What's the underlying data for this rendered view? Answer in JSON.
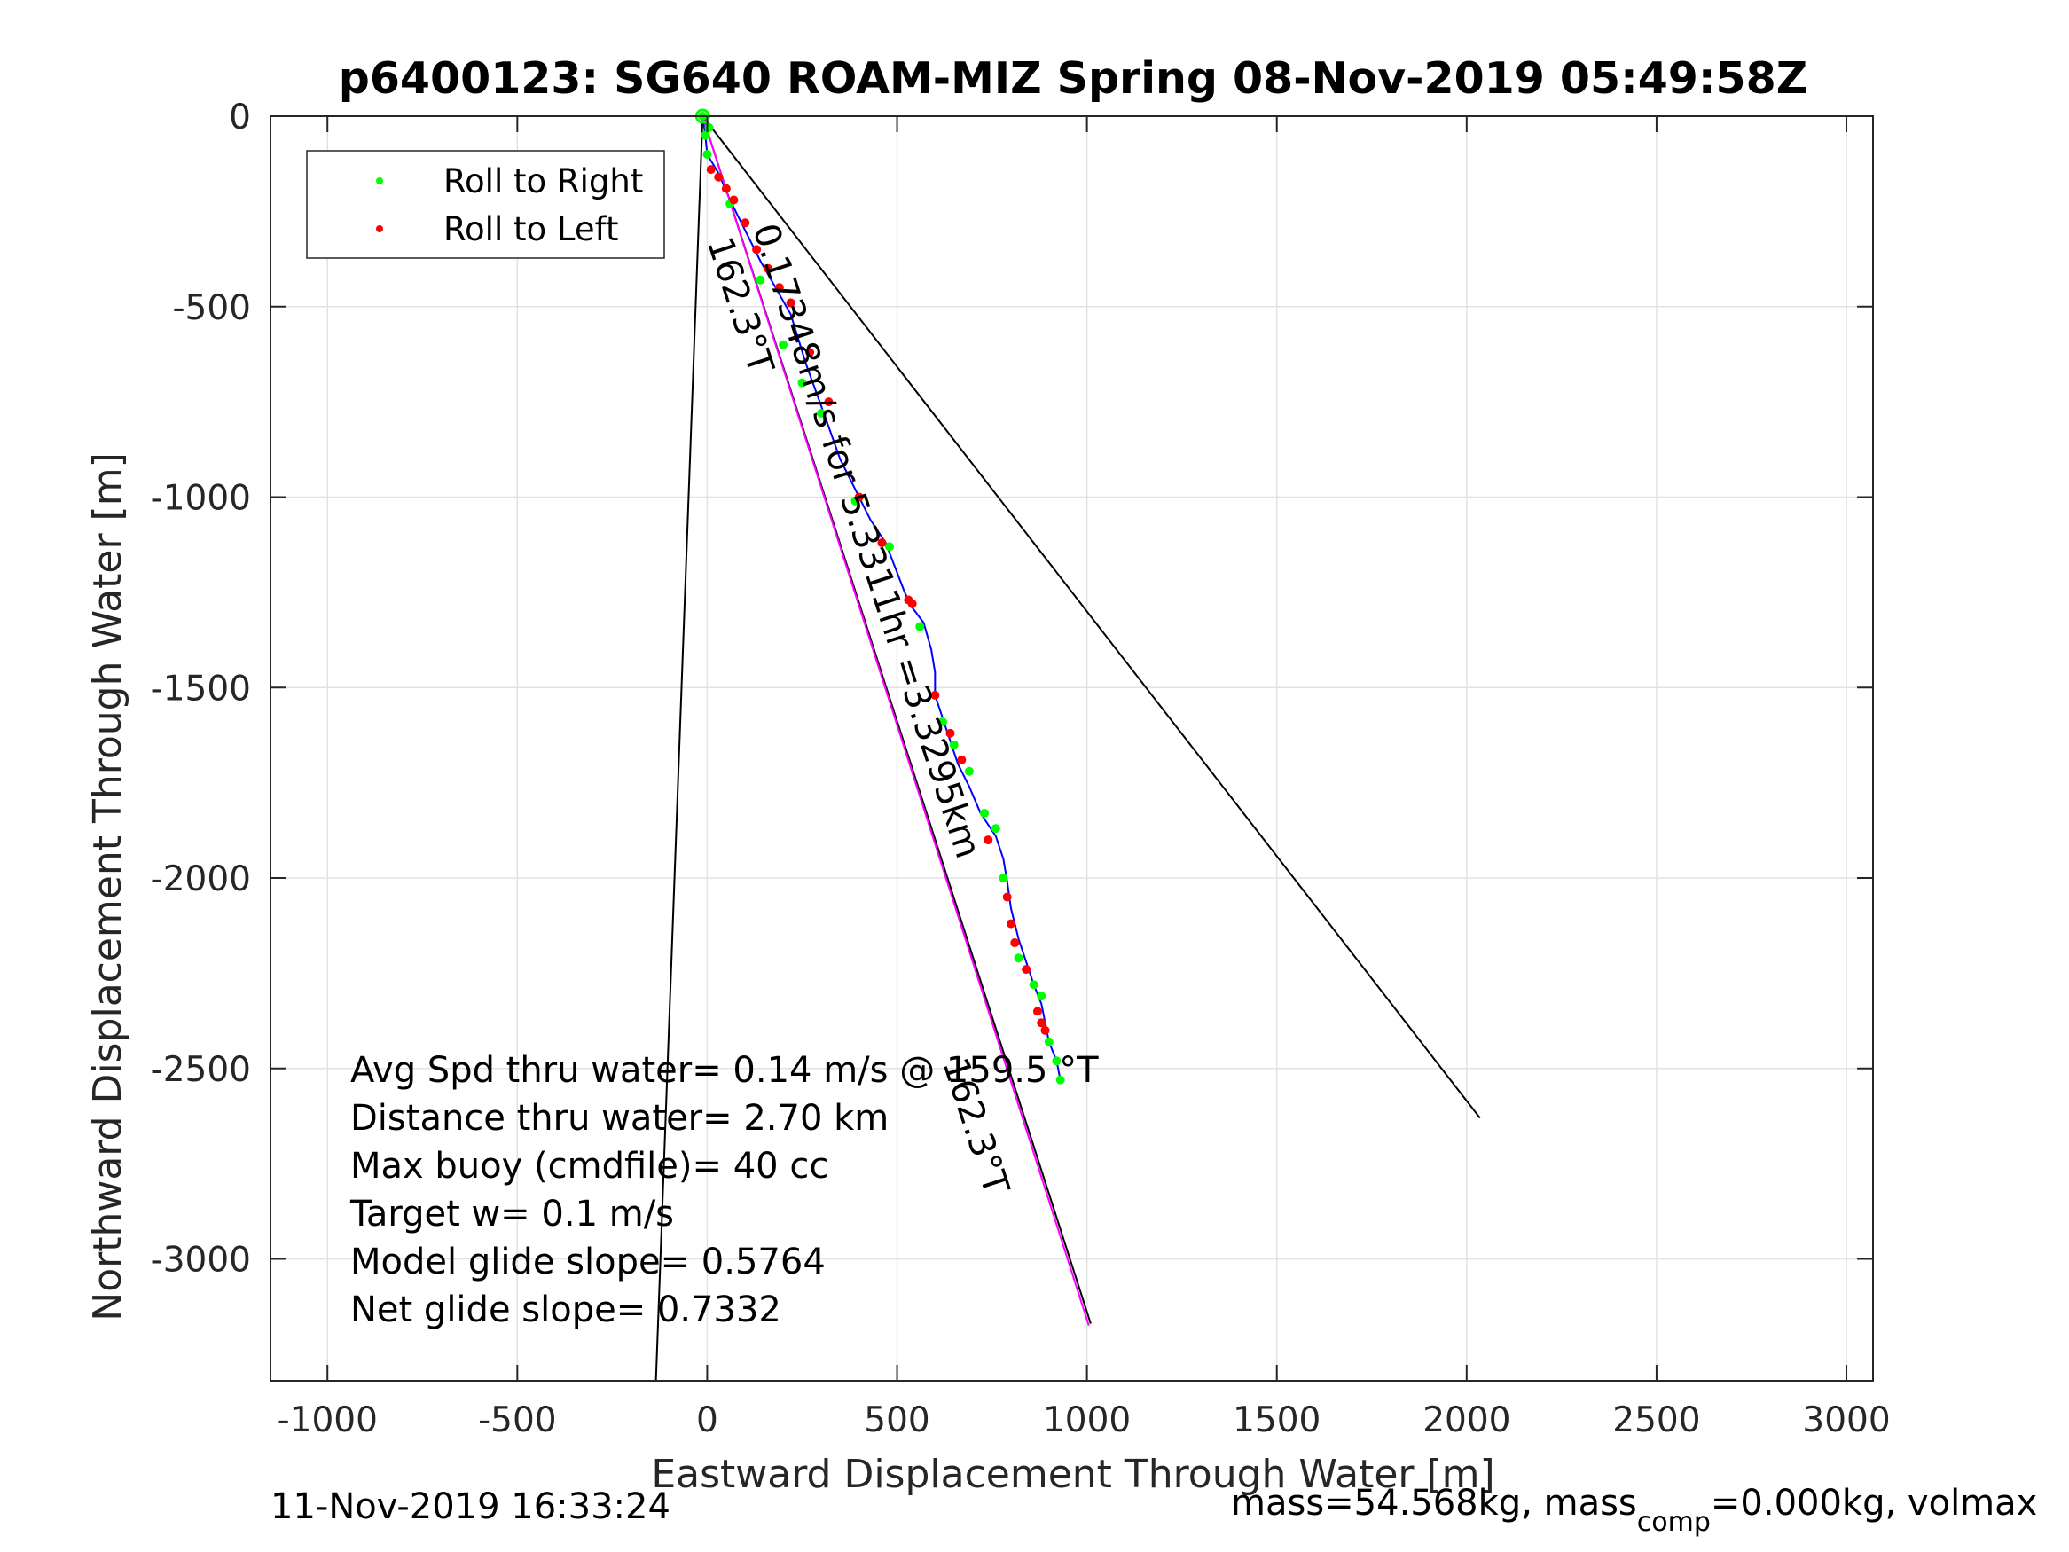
{
  "chart_data": {
    "type": "line",
    "title": "p6400123: SG640 ROAM-MIZ Spring 08-Nov-2019 05:49:58Z",
    "xlabel": "Eastward Displacement Through Water [m]",
    "ylabel": "Northward Displacement Through Water [m]",
    "xlim": [
      -1150,
      3070
    ],
    "ylim": [
      -3320,
      0
    ],
    "xticks": [
      -1000,
      -500,
      0,
      500,
      1000,
      1500,
      2000,
      2500,
      3000
    ],
    "yticks": [
      0,
      -500,
      -1000,
      -1500,
      -2000,
      -2500,
      -3000
    ],
    "grid": true,
    "legend_position": "top-left",
    "legend": [
      "Roll to Right",
      "Roll to Left"
    ],
    "series": [
      {
        "name": "Roll to Right",
        "type": "scatter",
        "color": "#00ff00",
        "x": [
          -12,
          -5,
          0,
          5,
          60,
          140,
          200,
          250,
          300,
          390,
          480,
          560,
          620,
          650,
          690,
          730,
          760,
          780,
          820,
          860,
          880,
          900,
          920,
          930
        ],
        "y": [
          0,
          -50,
          -100,
          -30,
          -230,
          -430,
          -600,
          -700,
          -780,
          -1010,
          -1130,
          -1340,
          -1590,
          -1650,
          -1720,
          -1830,
          -1870,
          -2000,
          -2210,
          -2280,
          -2310,
          -2430,
          -2480,
          -2530
        ]
      },
      {
        "name": "Roll to Left",
        "type": "scatter",
        "color": "#ff0000",
        "x": [
          10,
          30,
          50,
          70,
          100,
          130,
          160,
          190,
          220,
          270,
          320,
          400,
          460,
          530,
          540,
          600,
          640,
          670,
          740,
          790,
          800,
          810,
          840,
          870,
          880,
          890
        ],
        "y": [
          -140,
          -160,
          -190,
          -220,
          -280,
          -350,
          -400,
          -450,
          -490,
          -620,
          -750,
          -1000,
          -1120,
          -1270,
          -1280,
          -1520,
          -1620,
          -1690,
          -1900,
          -2050,
          -2120,
          -2170,
          -2240,
          -2350,
          -2380,
          -2400
        ]
      },
      {
        "name": "",
        "type": "line",
        "color": "#0000ff",
        "x": [
          -12,
          -5,
          0,
          30,
          60,
          100,
          140,
          180,
          220,
          260,
          300,
          350,
          400,
          430,
          470,
          520,
          540,
          570,
          590,
          600,
          600,
          620,
          640,
          660,
          690,
          720,
          760,
          780,
          790,
          800,
          820,
          840,
          860,
          880,
          890,
          900,
          920,
          930
        ],
        "y": [
          0,
          -50,
          -100,
          -150,
          -220,
          -300,
          -380,
          -450,
          -520,
          -650,
          -760,
          -900,
          -1000,
          -1060,
          -1120,
          -1250,
          -1290,
          -1330,
          -1400,
          -1460,
          -1520,
          -1580,
          -1640,
          -1700,
          -1760,
          -1830,
          -1890,
          -1950,
          -2010,
          -2080,
          -2160,
          -2220,
          -2280,
          -2330,
          -2380,
          -2430,
          -2480,
          -2530
        ]
      },
      {
        "name": "",
        "type": "line",
        "color": "#ff00ff",
        "x": [
          -12,
          1005
        ],
        "y": [
          0,
          -3175
        ]
      }
    ],
    "reference_lines": [
      {
        "x": [
          -12,
          1010
        ],
        "y": [
          0,
          -3170
        ]
      },
      {
        "x": [
          -12,
          -135
        ],
        "y": [
          0,
          -3320
        ]
      },
      {
        "x": [
          -12,
          2035
        ],
        "y": [
          0,
          -2630
        ]
      }
    ],
    "annotations": [
      {
        "text": "0.17348m/s for 5.3311hr =3.3295km",
        "x": 120,
        "y": -295,
        "rotation": 72
      },
      {
        "text": "162.3°T",
        "x": 0,
        "y": -330,
        "rotation": 72
      },
      {
        "text": "162.3°T",
        "x": 620,
        "y": -2485,
        "rotation": 72
      }
    ]
  },
  "stats": [
    "Avg Spd thru water=  0.14 m/s @ 159.5 °T",
    "Distance thru water=  2.70 km",
    "Max buoy (cmdfile)= 40 cc",
    "Target w= 0.1 m/s",
    "Model glide slope= 0.5764",
    "Net glide slope= 0.7332"
  ],
  "footer": {
    "timestamp": "11-Nov-2019 16:33:24",
    "mass_prefix": "mass=54.568kg, mass",
    "mass_sub": "comp",
    "mass_suffix": "=0.000kg, volmax"
  }
}
